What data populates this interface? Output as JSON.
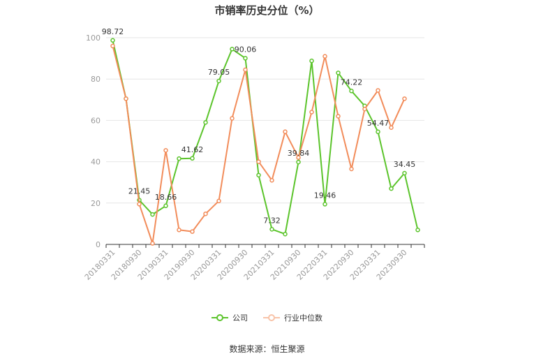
{
  "title": "市销率历史分位（%）",
  "source": "数据来源：恒生聚源",
  "legend": {
    "company": "公司",
    "industry": "行业中位数"
  },
  "colors": {
    "company": "#5bc42b",
    "industry": "#f28c5a",
    "grid": "#e6e6e6",
    "axis": "#333333",
    "tick": "#999999"
  },
  "chart_data": {
    "type": "line",
    "ylim": [
      0,
      100
    ],
    "yticks": [
      0,
      20,
      40,
      60,
      80,
      100
    ],
    "x": [
      "20180331",
      "20180630",
      "20180930",
      "20181231",
      "20190331",
      "20190630",
      "20190930",
      "20191231",
      "20200331",
      "20200630",
      "20200930",
      "20201231",
      "20210331",
      "20210630",
      "20210930",
      "20211231",
      "20220331",
      "20220630",
      "20220930",
      "20221231",
      "20230331",
      "20230630",
      "20230930",
      "20231231"
    ],
    "xtick_labels": [
      "20180331",
      "20180930",
      "20190331",
      "20190930",
      "20200331",
      "20200930",
      "20210331",
      "20210930",
      "20220331",
      "20220930",
      "20230331",
      "20230930"
    ],
    "series": [
      {
        "name": "公司",
        "values": [
          98.72,
          70.5,
          21.45,
          14.5,
          18.66,
          41.5,
          41.62,
          59,
          79.05,
          94.5,
          90.06,
          33.5,
          7.32,
          5,
          39.84,
          88.8,
          19.46,
          83,
          74.22,
          67,
          54.47,
          27,
          34.45,
          7
        ]
      },
      {
        "name": "行业中位数",
        "values": [
          96,
          70.5,
          19.5,
          0.5,
          45.5,
          7,
          6.2,
          14.8,
          21,
          61,
          84.5,
          40,
          31,
          54.5,
          42,
          64,
          91,
          62,
          36.5,
          65.5,
          74.5,
          56.5,
          70.5,
          null
        ]
      }
    ],
    "data_labels": [
      {
        "index": 0,
        "text": "98.72"
      },
      {
        "index": 2,
        "text": "21.45"
      },
      {
        "index": 4,
        "text": "18.66"
      },
      {
        "index": 6,
        "text": "41.62"
      },
      {
        "index": 8,
        "text": "79.05"
      },
      {
        "index": 10,
        "text": "90.06"
      },
      {
        "index": 12,
        "text": "7.32"
      },
      {
        "index": 14,
        "text": "39.84"
      },
      {
        "index": 16,
        "text": "19.46"
      },
      {
        "index": 18,
        "text": "74.22"
      },
      {
        "index": 20,
        "text": "54.47"
      },
      {
        "index": 22,
        "text": "34.45"
      }
    ]
  }
}
